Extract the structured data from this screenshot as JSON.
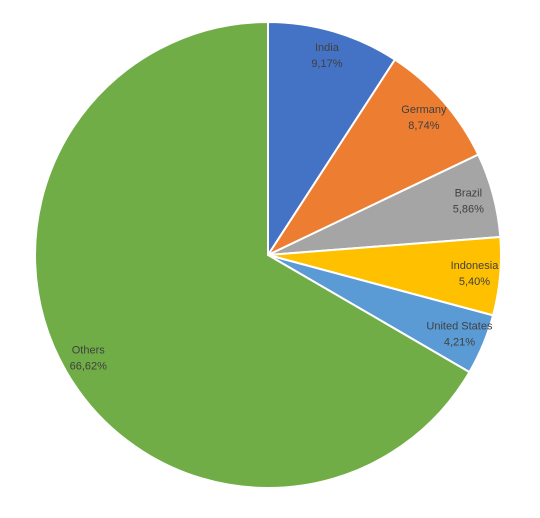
{
  "chart_data": {
    "type": "pie",
    "categories": [
      "India",
      "Germany",
      "Brazil",
      "Indonesia",
      "United States",
      "Others"
    ],
    "values": [
      9.17,
      8.74,
      5.86,
      5.4,
      4.21,
      66.62
    ],
    "value_labels": [
      "9,17%",
      "8,74%",
      "5,86%",
      "5,40%",
      "4,21%",
      "66,62%"
    ],
    "colors": [
      "#4472c4",
      "#ed7d31",
      "#a5a5a5",
      "#ffc000",
      "#5b9bd5",
      "#70ad47"
    ]
  }
}
